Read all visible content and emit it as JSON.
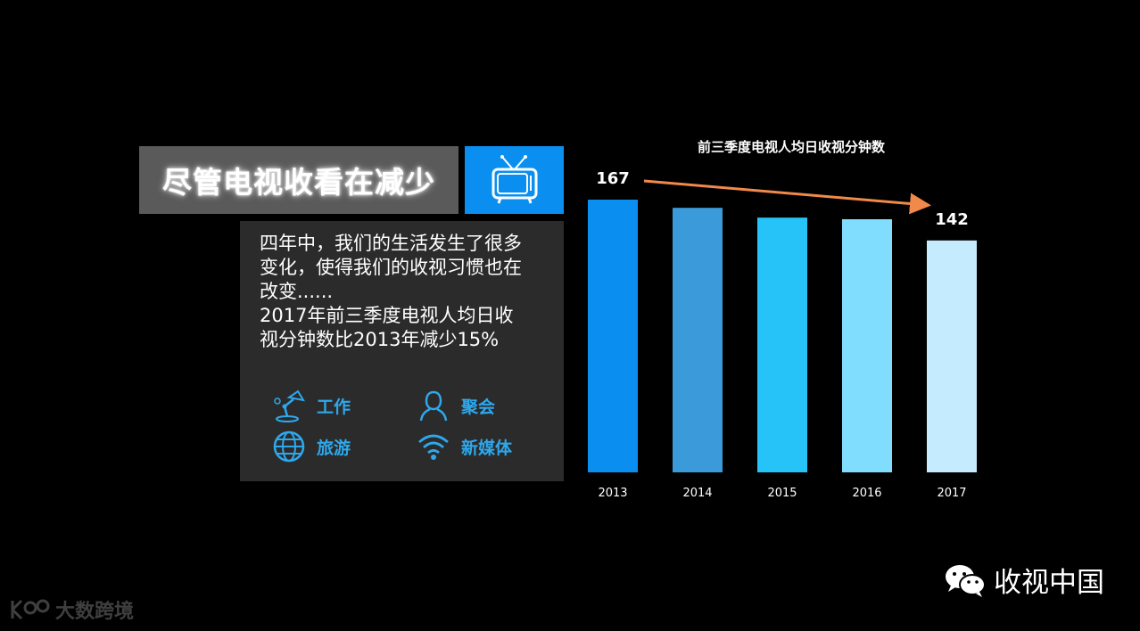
{
  "slide": {
    "title": "尽管电视收看在减少",
    "description_lines": [
      "四年中，我们的生活发生了很多",
      "变化，使得我们的收视习惯也在",
      "改变......",
      "2017年前三季度电视人均日收",
      "视分钟数比2013年减少15%"
    ],
    "categories": [
      {
        "label": "工作",
        "icon": "desk-lamp-icon"
      },
      {
        "label": "聚会",
        "icon": "person-icon"
      },
      {
        "label": "旅游",
        "icon": "globe-icon"
      },
      {
        "label": "新媒体",
        "icon": "wifi-icon"
      }
    ]
  },
  "chart_data": {
    "type": "bar",
    "title": "前三季度电视人均日收视分钟数",
    "categories": [
      "2013",
      "2014",
      "2015",
      "2016",
      "2017"
    ],
    "values": [
      167,
      162,
      156,
      155,
      142
    ],
    "data_labels": {
      "2013": "167",
      "2017": "142"
    },
    "bar_colors": [
      "#0a8ff0",
      "#3b9ad9",
      "#26c3f9",
      "#81ddfd",
      "#c4ecfe"
    ],
    "trend_arrow_color": "#f0894a",
    "ylim": [
      0,
      167
    ],
    "grid": false
  },
  "footer": {
    "wechat_account": "收视中国",
    "watermark": "大数跨境"
  }
}
